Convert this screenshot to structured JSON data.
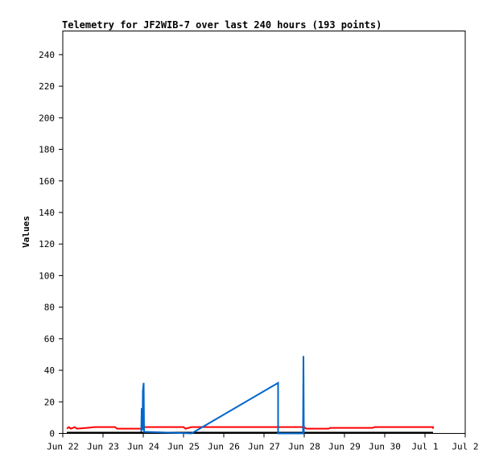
{
  "chart_data": {
    "type": "line",
    "title": "Telemetry for JF2WIB-7 over last 240 hours (193 points)",
    "xlabel": "",
    "ylabel": "Values",
    "x_unit": "days (Jun 22 = 0)",
    "xlim": [
      0,
      10
    ],
    "ylim": [
      0,
      255
    ],
    "x_ticks": [
      {
        "v": 0,
        "label": "Jun 22"
      },
      {
        "v": 1,
        "label": "Jun 23"
      },
      {
        "v": 2,
        "label": "Jun 24"
      },
      {
        "v": 3,
        "label": "Jun 25"
      },
      {
        "v": 4,
        "label": "Jun 26"
      },
      {
        "v": 5,
        "label": "Jun 27"
      },
      {
        "v": 6,
        "label": "Jun 28"
      },
      {
        "v": 7,
        "label": "Jun 29"
      },
      {
        "v": 8,
        "label": "Jun 30"
      },
      {
        "v": 9,
        "label": "Jul 1"
      },
      {
        "v": 10,
        "label": "Jul 2"
      }
    ],
    "y_ticks": [
      0,
      20,
      40,
      60,
      80,
      100,
      120,
      140,
      160,
      180,
      200,
      220,
      240
    ],
    "grid": false,
    "series": [
      {
        "color": "#000000",
        "points": [
          [
            0.1,
            0.5
          ],
          [
            9.2,
            0.5
          ]
        ]
      },
      {
        "color": "#ff0000",
        "points": [
          [
            0.1,
            3
          ],
          [
            0.15,
            4
          ],
          [
            0.2,
            3
          ],
          [
            0.3,
            4
          ],
          [
            0.35,
            3
          ],
          [
            0.6,
            3.5
          ],
          [
            0.8,
            4
          ],
          [
            1.3,
            4
          ],
          [
            1.35,
            3
          ],
          [
            1.95,
            3
          ],
          [
            2.0,
            4
          ],
          [
            3.0,
            4
          ],
          [
            3.05,
            3
          ],
          [
            3.2,
            4
          ],
          [
            5.0,
            4
          ],
          [
            6.0,
            4
          ],
          [
            6.05,
            3
          ],
          [
            6.6,
            3
          ],
          [
            6.65,
            3.5
          ],
          [
            7.7,
            3.5
          ],
          [
            7.75,
            4
          ],
          [
            9.2,
            4
          ],
          [
            9.2,
            3
          ]
        ]
      },
      {
        "color": "#0066cc",
        "points": [
          [
            1.95,
            1
          ],
          [
            1.96,
            16
          ],
          [
            1.98,
            2
          ],
          [
            1.99,
            27
          ],
          [
            2.01,
            32
          ],
          [
            2.02,
            1
          ],
          [
            3.2,
            0
          ],
          [
            5.35,
            32
          ],
          [
            5.35,
            0
          ],
          [
            5.37,
            0
          ],
          [
            5.97,
            0
          ],
          [
            5.98,
            49
          ],
          [
            5.99,
            0
          ]
        ]
      }
    ]
  }
}
